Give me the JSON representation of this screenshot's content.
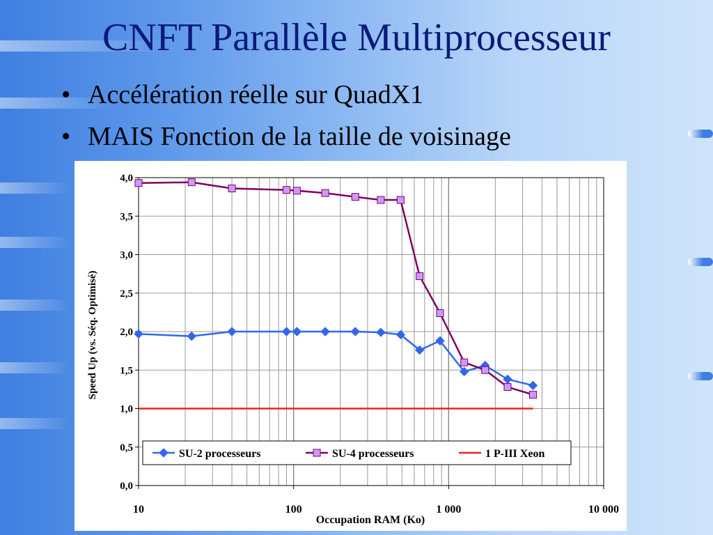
{
  "slide": {
    "title": "CNFT Parallèle Multiprocesseur",
    "bullets": [
      "Accélération réelle sur QuadX1",
      "MAIS Fonction de la taille de voisinage"
    ]
  },
  "chart_data": {
    "type": "line",
    "title": "",
    "xlabel": "Occupation RAM (Ko)",
    "ylabel": "Speed Up (vs. Séq. Optimisé)",
    "x_scale": "log",
    "xlim": [
      10,
      10000
    ],
    "ylim": [
      0,
      4
    ],
    "x_ticks": [
      10,
      100,
      1000,
      10000
    ],
    "x_tick_labels": [
      "10",
      "100",
      "1 000",
      "10 000"
    ],
    "y_ticks": [
      0,
      0.5,
      1,
      1.5,
      2,
      2.5,
      3,
      3.5,
      4
    ],
    "y_tick_labels": [
      "0,0",
      "0,5",
      "1,0",
      "1,5",
      "2,0",
      "2,5",
      "3,0",
      "3,5",
      "4,0"
    ],
    "grid": true,
    "legend_position": "bottom",
    "series": [
      {
        "name": "SU-2 processeurs",
        "color": "#3366ee",
        "marker": "diamond",
        "points": [
          [
            10,
            1.97
          ],
          [
            22,
            1.94
          ],
          [
            40,
            2.0
          ],
          [
            90,
            2.0
          ],
          [
            105,
            2.0
          ],
          [
            160,
            2.0
          ],
          [
            250,
            2.0
          ],
          [
            365,
            1.99
          ],
          [
            490,
            1.96
          ],
          [
            650,
            1.76
          ],
          [
            880,
            1.88
          ],
          [
            1260,
            1.48
          ],
          [
            1720,
            1.56
          ],
          [
            2400,
            1.38
          ],
          [
            3500,
            1.3
          ]
        ]
      },
      {
        "name": "SU-4 processeurs",
        "color": "#800060",
        "marker_fill": "#cc99ff",
        "marker": "square",
        "points": [
          [
            10,
            3.93
          ],
          [
            22,
            3.94
          ],
          [
            40,
            3.86
          ],
          [
            90,
            3.84
          ],
          [
            105,
            3.83
          ],
          [
            160,
            3.8
          ],
          [
            250,
            3.75
          ],
          [
            365,
            3.71
          ],
          [
            490,
            3.71
          ],
          [
            650,
            2.72
          ],
          [
            880,
            2.24
          ],
          [
            1260,
            1.6
          ],
          [
            1720,
            1.5
          ],
          [
            2400,
            1.28
          ],
          [
            3500,
            1.18
          ]
        ]
      },
      {
        "name": "1 P-III Xeon",
        "color": "#ee2222",
        "marker": "none",
        "points": [
          [
            10,
            1.0
          ],
          [
            3500,
            1.0
          ]
        ]
      }
    ]
  }
}
